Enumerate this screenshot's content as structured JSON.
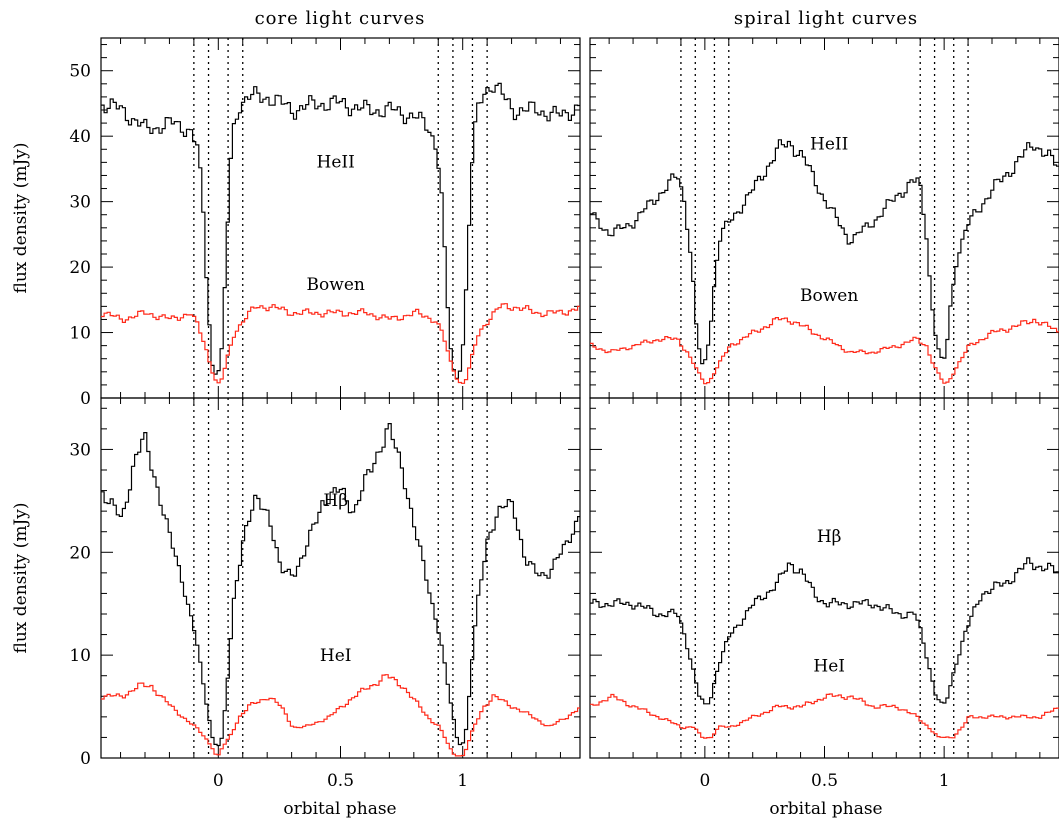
{
  "figure": {
    "titles": [
      "core light curves",
      "spiral light curves"
    ],
    "xlabel": "orbital phase",
    "ylabel": "flux density (mJy)"
  },
  "chart_data": [
    {
      "type": "line",
      "title": "core light curves",
      "xlabel": "",
      "ylabel": "flux density (mJy)",
      "xlim": [
        -0.48,
        1.48
      ],
      "ylim": [
        0,
        55
      ],
      "xticks": [
        0,
        0.5,
        1
      ],
      "yticks": [
        0,
        10,
        20,
        30,
        40,
        50
      ],
      "vlines": [
        -0.1,
        -0.04,
        0.04,
        0.1,
        0.9,
        0.96,
        1.04,
        1.1
      ],
      "series": [
        {
          "name": "HeII",
          "color": "#000000",
          "x": [
            -0.48,
            -0.4,
            -0.3,
            -0.2,
            -0.12,
            -0.09,
            -0.07,
            -0.05,
            -0.03,
            -0.01,
            0.01,
            0.03,
            0.05,
            0.08,
            0.12,
            0.2,
            0.3,
            0.4,
            0.5,
            0.6,
            0.7,
            0.8,
            0.86,
            0.89,
            0.91,
            0.93,
            0.95,
            0.97,
            0.99,
            1.01,
            1.03,
            1.05,
            1.08,
            1.12,
            1.2,
            1.3,
            1.4,
            1.48
          ],
          "y": [
            45,
            44,
            41,
            42,
            41,
            38,
            30,
            15,
            5,
            3,
            8,
            25,
            40,
            45,
            46,
            46,
            44,
            45,
            45,
            44,
            44,
            43,
            41,
            38,
            30,
            15,
            5,
            3,
            5,
            18,
            35,
            43,
            47,
            48,
            44,
            44,
            43,
            45
          ]
        },
        {
          "name": "Bowen",
          "color": "#ff2a1a",
          "x": [
            -0.48,
            -0.4,
            -0.3,
            -0.2,
            -0.12,
            -0.09,
            -0.06,
            -0.03,
            -0.01,
            0.01,
            0.03,
            0.06,
            0.1,
            0.15,
            0.2,
            0.3,
            0.4,
            0.5,
            0.6,
            0.7,
            0.8,
            0.88,
            0.91,
            0.94,
            0.97,
            0.99,
            1.01,
            1.03,
            1.06,
            1.1,
            1.15,
            1.2,
            1.3,
            1.4,
            1.48
          ],
          "y": [
            13,
            12,
            13,
            12,
            13,
            11,
            8,
            4,
            2,
            3,
            6,
            10,
            12,
            14,
            14,
            13,
            13,
            13,
            13,
            12,
            13,
            12,
            10,
            6,
            3,
            2,
            3,
            6,
            10,
            12,
            14,
            14,
            13,
            13,
            14
          ]
        }
      ],
      "annotations": [
        "HeII",
        "Bowen"
      ]
    },
    {
      "type": "line",
      "title": "spiral light curves",
      "xlabel": "",
      "ylabel": "",
      "xlim": [
        -0.48,
        1.48
      ],
      "ylim": [
        0,
        55
      ],
      "xticks": [
        0,
        0.5,
        1
      ],
      "yticks": [
        0,
        10,
        20,
        30,
        40,
        50
      ],
      "vlines": [
        -0.1,
        -0.04,
        0.04,
        0.1,
        0.9,
        0.96,
        1.04,
        1.1
      ],
      "series": [
        {
          "name": "HeII",
          "color": "#000000",
          "x": [
            -0.48,
            -0.4,
            -0.3,
            -0.2,
            -0.12,
            -0.09,
            -0.06,
            -0.04,
            -0.02,
            0.0,
            0.02,
            0.04,
            0.06,
            0.1,
            0.2,
            0.3,
            0.35,
            0.4,
            0.5,
            0.6,
            0.7,
            0.8,
            0.86,
            0.89,
            0.92,
            0.94,
            0.96,
            0.98,
            1.0,
            1.02,
            1.05,
            1.1,
            1.2,
            1.3,
            1.37,
            1.48
          ],
          "y": [
            28,
            25,
            27,
            31,
            34,
            30,
            20,
            10,
            5,
            6,
            12,
            20,
            25,
            27,
            32,
            38,
            39,
            37,
            30,
            24,
            27,
            31,
            33,
            33,
            25,
            15,
            9,
            6,
            6,
            14,
            22,
            27,
            32,
            36,
            39,
            35
          ]
        },
        {
          "name": "Bowen",
          "color": "#ff2a1a",
          "x": [
            -0.48,
            -0.4,
            -0.3,
            -0.2,
            -0.12,
            -0.08,
            -0.05,
            -0.02,
            0.0,
            0.02,
            0.05,
            0.1,
            0.2,
            0.3,
            0.35,
            0.4,
            0.5,
            0.6,
            0.7,
            0.8,
            0.88,
            0.92,
            0.95,
            0.98,
            1.0,
            1.02,
            1.05,
            1.1,
            1.2,
            1.3,
            1.37,
            1.48
          ],
          "y": [
            8,
            7,
            8,
            9,
            9,
            7,
            5,
            3,
            2,
            3,
            5,
            8,
            10,
            12,
            12,
            11,
            9,
            7,
            7,
            8,
            9,
            8,
            5,
            3,
            2,
            3,
            5,
            8,
            10,
            11,
            12,
            10
          ]
        }
      ],
      "annotations": [
        "HeII",
        "Bowen"
      ]
    },
    {
      "type": "line",
      "title": "",
      "xlabel": "orbital phase",
      "ylabel": "flux density (mJy)",
      "xlim": [
        -0.48,
        1.48
      ],
      "ylim": [
        0,
        35
      ],
      "xticks": [
        0,
        0.5,
        1
      ],
      "yticks": [
        0,
        10,
        20,
        30
      ],
      "vlines": [
        -0.1,
        -0.04,
        0.04,
        0.1,
        0.9,
        0.96,
        1.04,
        1.1
      ],
      "series": [
        {
          "name": "Hβ",
          "color": "#000000",
          "x": [
            -0.48,
            -0.4,
            -0.35,
            -0.31,
            -0.25,
            -0.2,
            -0.15,
            -0.1,
            -0.06,
            -0.03,
            -0.01,
            0.01,
            0.03,
            0.06,
            0.1,
            0.15,
            0.2,
            0.25,
            0.3,
            0.35,
            0.42,
            0.5,
            0.55,
            0.6,
            0.65,
            0.69,
            0.75,
            0.8,
            0.85,
            0.9,
            0.94,
            0.97,
            0.99,
            1.01,
            1.03,
            1.06,
            1.1,
            1.15,
            1.2,
            1.25,
            1.3,
            1.35,
            1.4,
            1.48
          ],
          "y": [
            26,
            23,
            29,
            31,
            26,
            21,
            17,
            12,
            6,
            2,
            1,
            2,
            7,
            16,
            22,
            25,
            24,
            18,
            18,
            20,
            25,
            26,
            24,
            27,
            30,
            32,
            28,
            22,
            17,
            12,
            6,
            2,
            1,
            3,
            9,
            16,
            22,
            24,
            25,
            19,
            18,
            18,
            20,
            24
          ]
        },
        {
          "name": "HeI",
          "color": "#ff2a1a",
          "x": [
            -0.48,
            -0.4,
            -0.33,
            -0.28,
            -0.2,
            -0.15,
            -0.1,
            -0.06,
            -0.03,
            -0.01,
            0.01,
            0.04,
            0.08,
            0.12,
            0.2,
            0.25,
            0.3,
            0.35,
            0.45,
            0.55,
            0.62,
            0.68,
            0.75,
            0.85,
            0.9,
            0.94,
            0.97,
            0.99,
            1.01,
            1.04,
            1.08,
            1.12,
            1.2,
            1.28,
            1.35,
            1.42,
            1.48
          ],
          "y": [
            6,
            6,
            7,
            7,
            5,
            4,
            3,
            2,
            1,
            0,
            1,
            2,
            4,
            5,
            6,
            5,
            3,
            3,
            4,
            6,
            7,
            8,
            7,
            4,
            3,
            1,
            0,
            0,
            1,
            3,
            5,
            6,
            5,
            4,
            3,
            4,
            5
          ]
        }
      ],
      "annotations": [
        "Hβ",
        "HeI"
      ]
    },
    {
      "type": "line",
      "title": "",
      "xlabel": "orbital phase",
      "ylabel": "",
      "xlim": [
        -0.48,
        1.48
      ],
      "ylim": [
        0,
        35
      ],
      "xticks": [
        0,
        0.5,
        1
      ],
      "yticks": [
        0,
        10,
        20,
        30
      ],
      "vlines": [
        -0.1,
        -0.04,
        0.04,
        0.1,
        0.9,
        0.96,
        1.04,
        1.1
      ],
      "series": [
        {
          "name": "Hβ",
          "color": "#000000",
          "x": [
            -0.48,
            -0.4,
            -0.3,
            -0.2,
            -0.12,
            -0.09,
            -0.06,
            -0.03,
            0.0,
            0.02,
            0.05,
            0.1,
            0.2,
            0.3,
            0.35,
            0.4,
            0.45,
            0.5,
            0.6,
            0.7,
            0.8,
            0.87,
            0.9,
            0.93,
            0.96,
            0.99,
            1.01,
            1.04,
            1.08,
            1.15,
            1.25,
            1.35,
            1.48
          ],
          "y": [
            15,
            15,
            15,
            14,
            14,
            12,
            9,
            6,
            5,
            6,
            9,
            12,
            15,
            17,
            19,
            18,
            16,
            15,
            15,
            15,
            14,
            14,
            12,
            9,
            6,
            5,
            6,
            9,
            12,
            16,
            17,
            19,
            18
          ]
        },
        {
          "name": "HeI",
          "color": "#ff2a1a",
          "x": [
            -0.48,
            -0.4,
            -0.3,
            -0.2,
            -0.1,
            -0.05,
            -0.02,
            0.0,
            0.02,
            0.05,
            0.1,
            0.2,
            0.3,
            0.4,
            0.5,
            0.6,
            0.7,
            0.8,
            0.88,
            0.93,
            0.97,
            1.0,
            1.03,
            1.07,
            1.1,
            1.2,
            1.3,
            1.4,
            1.48
          ],
          "y": [
            5,
            6,
            5,
            4,
            3,
            3,
            2,
            2,
            2,
            3,
            3,
            4,
            5,
            5,
            6,
            6,
            5,
            5,
            4,
            3,
            2,
            2,
            2,
            3,
            4,
            4,
            4,
            4,
            5
          ]
        }
      ],
      "annotations": [
        "Hβ",
        "HeI"
      ]
    }
  ]
}
